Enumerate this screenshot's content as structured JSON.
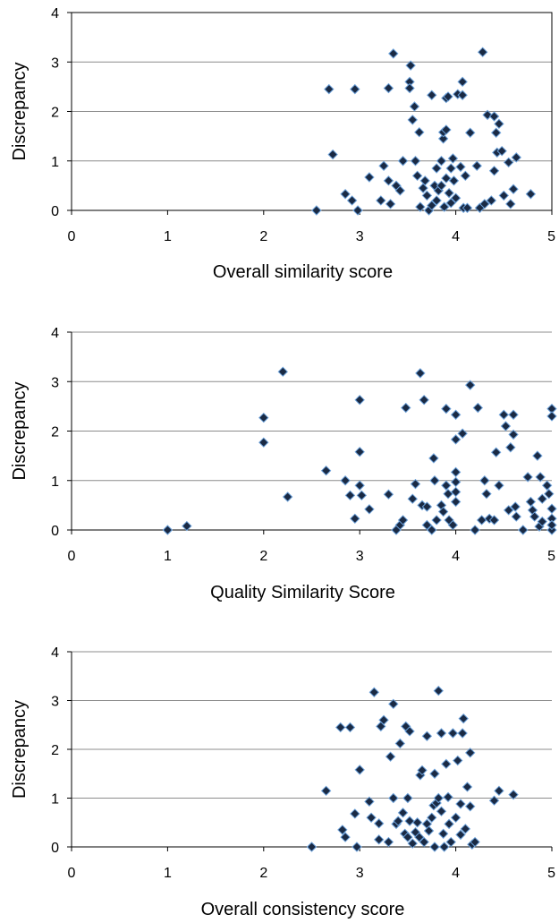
{
  "chart_data": [
    {
      "type": "scatter",
      "title": "",
      "xlabel": "Overall similarity score",
      "ylabel": "Discrepancy",
      "xlim": [
        0,
        5
      ],
      "ylim": [
        0,
        4
      ],
      "xticks": [
        "0",
        "1",
        "2",
        "3",
        "4",
        "5"
      ],
      "yticks": [
        "0",
        "1",
        "2",
        "3",
        "4"
      ],
      "grid": "horizontal",
      "frame": "full",
      "marker": "diamond",
      "marker_color": "#1a2a44",
      "marker_edge": "#6a9fd8",
      "series": [
        {
          "points": [
            [
              2.55,
              0
            ],
            [
              2.68,
              2.45
            ],
            [
              2.72,
              1.13
            ],
            [
              2.85,
              0.33
            ],
            [
              2.92,
              0.2
            ],
            [
              2.95,
              2.45
            ],
            [
              2.98,
              0
            ],
            [
              3.1,
              0.67
            ],
            [
              3.22,
              0.2
            ],
            [
              3.25,
              0.9
            ],
            [
              3.3,
              0.6
            ],
            [
              3.3,
              2.47
            ],
            [
              3.32,
              0.13
            ],
            [
              3.35,
              3.17
            ],
            [
              3.38,
              0.5
            ],
            [
              3.42,
              0.4
            ],
            [
              3.45,
              1.0
            ],
            [
              3.52,
              2.6
            ],
            [
              3.52,
              2.47
            ],
            [
              3.53,
              2.93
            ],
            [
              3.55,
              1.83
            ],
            [
              3.57,
              2.1
            ],
            [
              3.58,
              1.0
            ],
            [
              3.6,
              0.7
            ],
            [
              3.62,
              1.58
            ],
            [
              3.63,
              0.07
            ],
            [
              3.66,
              0.45
            ],
            [
              3.68,
              0.6
            ],
            [
              3.7,
              0.3
            ],
            [
              3.72,
              0.0
            ],
            [
              3.75,
              2.33
            ],
            [
              3.75,
              0.1
            ],
            [
              3.78,
              0.5
            ],
            [
              3.8,
              0.85
            ],
            [
              3.8,
              0.2
            ],
            [
              3.82,
              0.4
            ],
            [
              3.85,
              1.0
            ],
            [
              3.85,
              0.5
            ],
            [
              3.87,
              1.45
            ],
            [
              3.87,
              1.58
            ],
            [
              3.88,
              0.07
            ],
            [
              3.9,
              1.63
            ],
            [
              3.9,
              0.65
            ],
            [
              3.9,
              2.27
            ],
            [
              3.92,
              2.3
            ],
            [
              3.93,
              0.35
            ],
            [
              3.95,
              0.85
            ],
            [
              3.95,
              0.15
            ],
            [
              3.97,
              1.05
            ],
            [
              3.98,
              0.6
            ],
            [
              4.0,
              0.25
            ],
            [
              4.02,
              2.35
            ],
            [
              4.05,
              0.88
            ],
            [
              4.07,
              2.6
            ],
            [
              4.07,
              2.33
            ],
            [
              4.08,
              0.05
            ],
            [
              4.1,
              0.7
            ],
            [
              4.12,
              0.05
            ],
            [
              4.15,
              1.57
            ],
            [
              4.22,
              0.9
            ],
            [
              4.25,
              0.05
            ],
            [
              4.28,
              3.2
            ],
            [
              4.3,
              0.13
            ],
            [
              4.33,
              1.93
            ],
            [
              4.37,
              0.2
            ],
            [
              4.4,
              1.9
            ],
            [
              4.4,
              0.8
            ],
            [
              4.42,
              1.57
            ],
            [
              4.43,
              1.17
            ],
            [
              4.45,
              1.75
            ],
            [
              4.48,
              1.2
            ],
            [
              4.5,
              0.3
            ],
            [
              4.55,
              0.97
            ],
            [
              4.57,
              0.13
            ],
            [
              4.6,
              0.43
            ],
            [
              4.63,
              1.07
            ],
            [
              4.78,
              0.33
            ]
          ]
        }
      ]
    },
    {
      "type": "scatter",
      "title": "",
      "xlabel": "Quality Similarity Score",
      "ylabel": "Discrepancy",
      "xlim": [
        0,
        5
      ],
      "ylim": [
        0,
        4
      ],
      "xticks": [
        "0",
        "1",
        "2",
        "3",
        "4",
        "5"
      ],
      "yticks": [
        "0",
        "1",
        "2",
        "3",
        "4"
      ],
      "grid": "horizontal",
      "frame": "left-bottom",
      "marker": "diamond",
      "marker_color": "#1a2a44",
      "marker_edge": "#6a9fd8",
      "series": [
        {
          "points": [
            [
              1.0,
              0
            ],
            [
              1.2,
              0.08
            ],
            [
              2.0,
              2.27
            ],
            [
              2.0,
              1.77
            ],
            [
              2.2,
              3.2
            ],
            [
              2.25,
              0.67
            ],
            [
              2.65,
              1.2
            ],
            [
              2.85,
              1.0
            ],
            [
              2.9,
              0.7
            ],
            [
              2.95,
              0.23
            ],
            [
              3.0,
              2.63
            ],
            [
              3.0,
              1.58
            ],
            [
              3.0,
              0.9
            ],
            [
              3.02,
              0.7
            ],
            [
              3.1,
              0.42
            ],
            [
              3.3,
              0.72
            ],
            [
              3.38,
              0.0
            ],
            [
              3.42,
              0.1
            ],
            [
              3.45,
              0.2
            ],
            [
              3.48,
              2.47
            ],
            [
              3.55,
              0.63
            ],
            [
              3.58,
              0.93
            ],
            [
              3.63,
              3.17
            ],
            [
              3.65,
              0.5
            ],
            [
              3.67,
              2.63
            ],
            [
              3.7,
              0.47
            ],
            [
              3.7,
              0.1
            ],
            [
              3.75,
              0.0
            ],
            [
              3.77,
              1.45
            ],
            [
              3.78,
              1.0
            ],
            [
              3.8,
              0.2
            ],
            [
              3.85,
              0.5
            ],
            [
              3.87,
              0.37
            ],
            [
              3.9,
              2.45
            ],
            [
              3.9,
              0.9
            ],
            [
              3.92,
              0.73
            ],
            [
              3.93,
              0.2
            ],
            [
              3.97,
              0.1
            ],
            [
              4.0,
              2.33
            ],
            [
              4.0,
              1.83
            ],
            [
              4.0,
              1.17
            ],
            [
              4.0,
              0.97
            ],
            [
              4.0,
              0.77
            ],
            [
              4.0,
              0.57
            ],
            [
              4.07,
              1.95
            ],
            [
              4.15,
              2.93
            ],
            [
              4.2,
              0.0
            ],
            [
              4.23,
              2.47
            ],
            [
              4.27,
              0.2
            ],
            [
              4.3,
              1.0
            ],
            [
              4.32,
              0.73
            ],
            [
              4.35,
              0.23
            ],
            [
              4.4,
              0.2
            ],
            [
              4.42,
              1.57
            ],
            [
              4.45,
              0.9
            ],
            [
              4.5,
              2.33
            ],
            [
              4.52,
              2.1
            ],
            [
              4.55,
              0.4
            ],
            [
              4.57,
              1.67
            ],
            [
              4.6,
              2.33
            ],
            [
              4.6,
              1.93
            ],
            [
              4.62,
              0.47
            ],
            [
              4.63,
              0.27
            ],
            [
              4.7,
              0.0
            ],
            [
              4.75,
              1.07
            ],
            [
              4.78,
              0.57
            ],
            [
              4.8,
              0.4
            ],
            [
              4.82,
              0.27
            ],
            [
              4.85,
              1.5
            ],
            [
              4.87,
              0.07
            ],
            [
              4.88,
              1.07
            ],
            [
              4.9,
              0.63
            ],
            [
              4.9,
              0.17
            ],
            [
              4.95,
              0.9
            ],
            [
              4.97,
              0.73
            ],
            [
              5.0,
              2.45
            ],
            [
              5.0,
              2.3
            ],
            [
              5.0,
              0.43
            ],
            [
              5.0,
              0.23
            ],
            [
              5.0,
              0.0
            ],
            [
              5.0,
              0.1
            ]
          ]
        }
      ]
    },
    {
      "type": "scatter",
      "title": "",
      "xlabel": "Overall consistency score",
      "ylabel": "Discrepancy",
      "xlim": [
        0,
        5
      ],
      "ylim": [
        0,
        4
      ],
      "xticks": [
        "0",
        "1",
        "2",
        "3",
        "4",
        "5"
      ],
      "yticks": [
        "0",
        "1",
        "2",
        "3",
        "4"
      ],
      "grid": "horizontal",
      "frame": "left-bottom",
      "marker": "diamond",
      "marker_color": "#1a2a44",
      "marker_edge": "#6a9fd8",
      "series": [
        {
          "points": [
            [
              2.5,
              0
            ],
            [
              2.65,
              1.15
            ],
            [
              2.8,
              2.45
            ],
            [
              2.82,
              0.35
            ],
            [
              2.85,
              0.2
            ],
            [
              2.9,
              2.45
            ],
            [
              2.95,
              0.68
            ],
            [
              2.97,
              0.0
            ],
            [
              3.0,
              1.58
            ],
            [
              3.1,
              0.93
            ],
            [
              3.12,
              0.6
            ],
            [
              3.15,
              3.17
            ],
            [
              3.2,
              0.48
            ],
            [
              3.2,
              0.15
            ],
            [
              3.22,
              2.47
            ],
            [
              3.25,
              2.6
            ],
            [
              3.3,
              0.1
            ],
            [
              3.32,
              1.85
            ],
            [
              3.35,
              2.93
            ],
            [
              3.35,
              1.0
            ],
            [
              3.38,
              0.47
            ],
            [
              3.4,
              0.53
            ],
            [
              3.42,
              2.12
            ],
            [
              3.45,
              0.7
            ],
            [
              3.47,
              0.27
            ],
            [
              3.48,
              2.47
            ],
            [
              3.5,
              0.2
            ],
            [
              3.5,
              1.0
            ],
            [
              3.52,
              0.53
            ],
            [
              3.52,
              2.37
            ],
            [
              3.55,
              0.07
            ],
            [
              3.58,
              0.3
            ],
            [
              3.6,
              0.5
            ],
            [
              3.62,
              0.2
            ],
            [
              3.63,
              1.47
            ],
            [
              3.65,
              1.57
            ],
            [
              3.67,
              0.1
            ],
            [
              3.7,
              0.47
            ],
            [
              3.7,
              2.27
            ],
            [
              3.72,
              0.33
            ],
            [
              3.75,
              0.6
            ],
            [
              3.77,
              0.85
            ],
            [
              3.78,
              0.0
            ],
            [
              3.78,
              1.5
            ],
            [
              3.8,
              0.9
            ],
            [
              3.82,
              3.2
            ],
            [
              3.82,
              1.0
            ],
            [
              3.85,
              2.33
            ],
            [
              3.85,
              0.73
            ],
            [
              3.87,
              0.27
            ],
            [
              3.88,
              0.0
            ],
            [
              3.9,
              1.7
            ],
            [
              3.92,
              1.02
            ],
            [
              3.93,
              0.47
            ],
            [
              3.95,
              0.1
            ],
            [
              3.97,
              2.33
            ],
            [
              4.0,
              0.6
            ],
            [
              4.02,
              1.77
            ],
            [
              4.05,
              0.88
            ],
            [
              4.05,
              0.25
            ],
            [
              4.07,
              2.33
            ],
            [
              4.08,
              2.63
            ],
            [
              4.1,
              0.37
            ],
            [
              4.12,
              1.23
            ],
            [
              4.15,
              1.93
            ],
            [
              4.15,
              0.83
            ],
            [
              4.17,
              0.05
            ],
            [
              4.2,
              0.1
            ],
            [
              4.4,
              0.95
            ],
            [
              4.45,
              1.15
            ],
            [
              4.6,
              1.07
            ]
          ]
        }
      ]
    }
  ]
}
